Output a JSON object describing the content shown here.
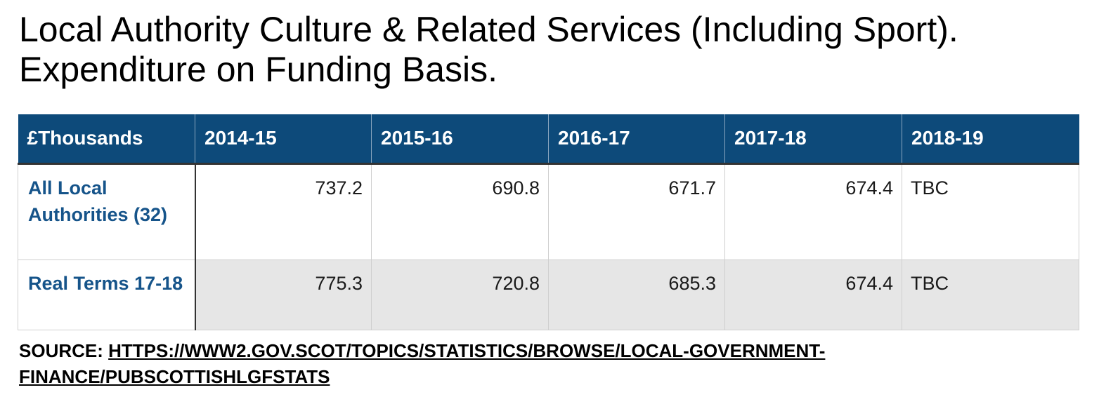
{
  "title": "Local Authority Culture & Related Services (Including Sport). Expenditure on Funding Basis.",
  "chart_data": {
    "type": "table",
    "title": "Local Authority Culture & Related Services (Including Sport). Expenditure on Funding Basis.",
    "columns": [
      "£Thousands",
      "2014-15",
      "2015-16",
      "2016-17",
      "2017-18",
      "2018-19"
    ],
    "rows": [
      {
        "label": "All Local Authorities (32)",
        "values": [
          "737.2",
          "690.8",
          "671.7",
          "674.4",
          "TBC"
        ]
      },
      {
        "label": "Real Terms 17-18",
        "values": [
          "775.3",
          "720.8",
          "685.3",
          "674.4",
          "TBC"
        ]
      }
    ]
  },
  "colors": {
    "header_bg": "#0d4a7a",
    "header_text": "#ffffff",
    "row_label": "#16548a",
    "shaded_row": "#e6e6e6"
  },
  "source": {
    "label": "SOURCE: ",
    "link_text": "HTTPS://WWW2.GOV.SCOT/TOPICS/STATISTICS/BROWSE/LOCAL-GOVERNMENT-FINANCE/PUBSCOTTISHLGFSTATS"
  }
}
